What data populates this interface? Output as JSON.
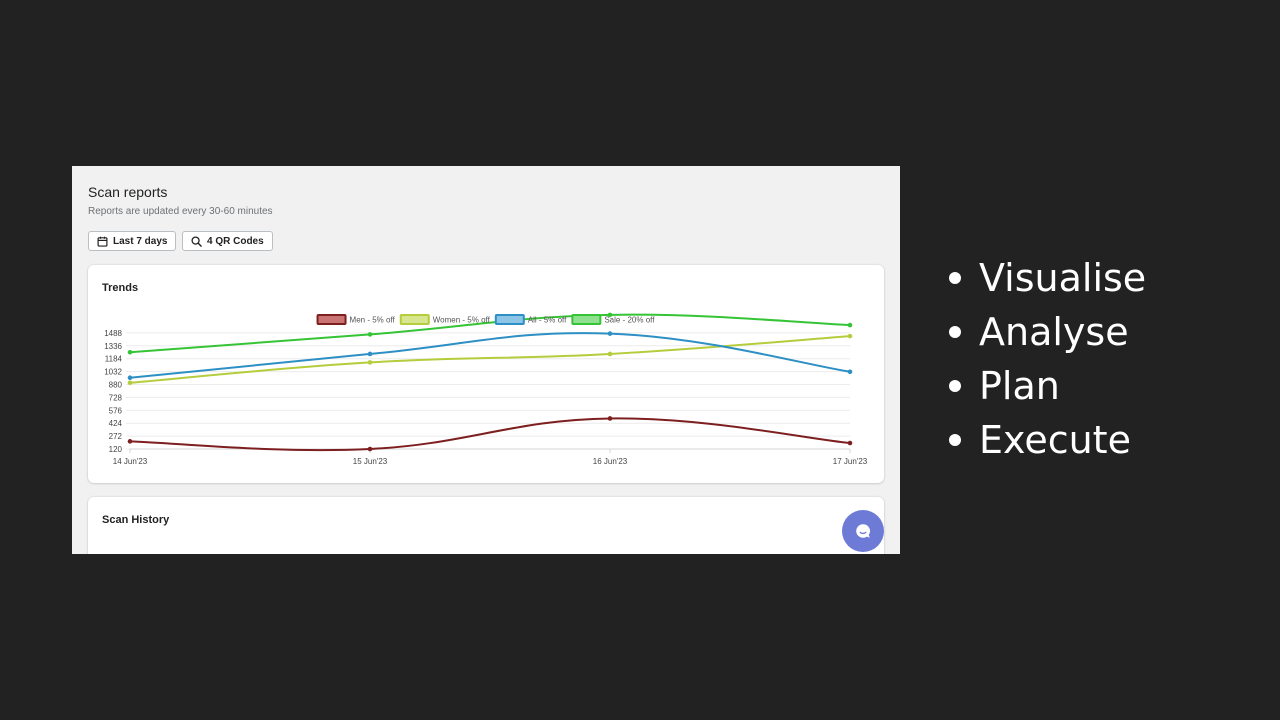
{
  "header": {
    "title": "Scan reports",
    "subtitle": "Reports are updated every 30-60 minutes"
  },
  "filters": {
    "date_range_label": "Last 7 days",
    "qr_codes_label": "4 QR Codes"
  },
  "trends_card": {
    "title": "Trends"
  },
  "history_card": {
    "title": "Scan History"
  },
  "icons": {
    "date_filter": "calendar-icon",
    "qr_filter": "search-icon",
    "chat": "chat-bubble-icon"
  },
  "chart_data": {
    "type": "line",
    "title": "",
    "xlabel": "",
    "ylabel": "",
    "categories": [
      "14 Jun'23",
      "15 Jun'23",
      "16 Jun'23",
      "17 Jun'23"
    ],
    "yticks": [
      120,
      272,
      424,
      576,
      728,
      880,
      1032,
      1184,
      1336,
      1488
    ],
    "ylim": [
      120,
      1640
    ],
    "grid": true,
    "legend_position": "top-center",
    "series": [
      {
        "name": "Men - 5% off",
        "color": "#7d1f1f",
        "fill": "#c97373",
        "values": [
          210,
          120,
          480,
          190
        ]
      },
      {
        "name": "Women - 5% off",
        "color": "#b5cc3c",
        "fill": "#d7e68f",
        "values": [
          900,
          1140,
          1240,
          1450
        ]
      },
      {
        "name": "All - 5% off",
        "color": "#2d8fc4",
        "fill": "#8cc5e6",
        "values": [
          960,
          1240,
          1480,
          1030
        ]
      },
      {
        "name": "Sale - 20% off",
        "color": "#35c435",
        "fill": "#8fe08f",
        "values": [
          1260,
          1470,
          1700,
          1580
        ]
      }
    ]
  },
  "bullets": [
    "Visualise",
    "Analyse",
    "Plan",
    "Execute"
  ]
}
